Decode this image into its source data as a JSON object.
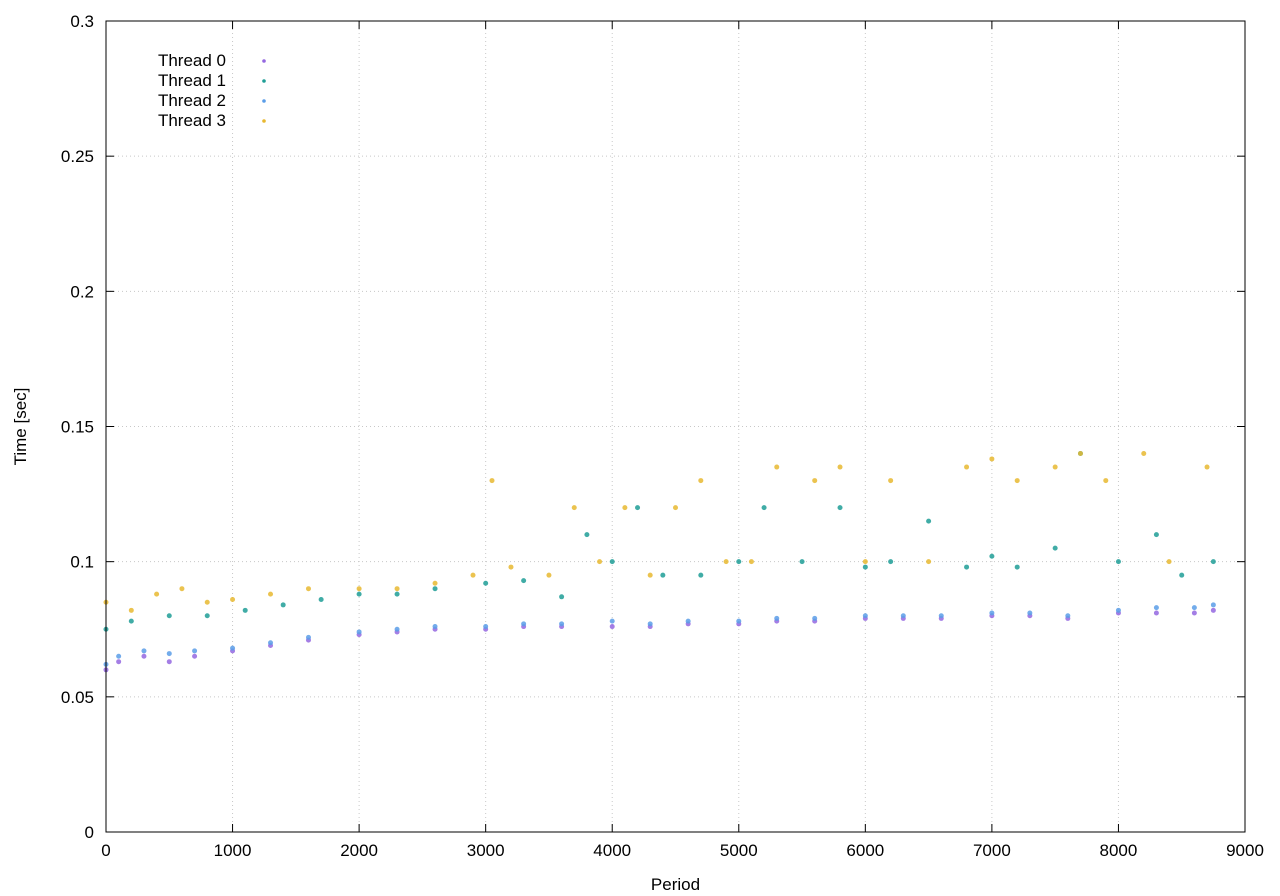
{
  "chart_data": {
    "type": "scatter",
    "title": "",
    "xlabel": "Period",
    "ylabel": "Time [sec]",
    "xlim": [
      0,
      9000
    ],
    "ylim": [
      0,
      0.3
    ],
    "x_ticks": [
      "0",
      "1000",
      "2000",
      "3000",
      "4000",
      "5000",
      "6000",
      "7000",
      "8000",
      "9000"
    ],
    "y_ticks": [
      "0",
      "0.05",
      "0.1",
      "0.15",
      "0.2",
      "0.25",
      "0.3"
    ],
    "grid": true,
    "legend_position": "top-left",
    "series": [
      {
        "name": "Thread 0",
        "color": "#9467e0",
        "x": [
          0,
          100,
          300,
          500,
          700,
          1000,
          1300,
          1600,
          2000,
          2300,
          2600,
          3000,
          3300,
          3600,
          4000,
          4300,
          4600,
          5000,
          5300,
          5600,
          6000,
          6300,
          6600,
          7000,
          7300,
          7600,
          8000,
          8300,
          8600,
          8750
        ],
        "y": [
          0.06,
          0.063,
          0.065,
          0.063,
          0.065,
          0.067,
          0.069,
          0.071,
          0.073,
          0.074,
          0.075,
          0.075,
          0.076,
          0.076,
          0.076,
          0.076,
          0.077,
          0.077,
          0.078,
          0.078,
          0.079,
          0.079,
          0.079,
          0.08,
          0.08,
          0.079,
          0.081,
          0.081,
          0.081,
          0.082
        ]
      },
      {
        "name": "Thread 1",
        "color": "#1f9e96",
        "x": [
          0,
          200,
          500,
          800,
          1100,
          1400,
          1700,
          2000,
          2300,
          2600,
          3000,
          3300,
          3600,
          3800,
          4000,
          4200,
          4400,
          4700,
          5000,
          5200,
          5500,
          5800,
          6000,
          6200,
          6500,
          6800,
          7000,
          7200,
          7500,
          7700,
          8000,
          8300,
          8500,
          8750
        ],
        "y": [
          0.075,
          0.078,
          0.08,
          0.08,
          0.082,
          0.084,
          0.086,
          0.088,
          0.088,
          0.09,
          0.092,
          0.093,
          0.087,
          0.11,
          0.1,
          0.12,
          0.095,
          0.095,
          0.1,
          0.12,
          0.1,
          0.12,
          0.098,
          0.1,
          0.115,
          0.098,
          0.102,
          0.098,
          0.105,
          0.14,
          0.1,
          0.11,
          0.095,
          0.1
        ]
      },
      {
        "name": "Thread 2",
        "color": "#5a9de8",
        "x": [
          0,
          100,
          300,
          500,
          700,
          1000,
          1300,
          1600,
          2000,
          2300,
          2600,
          3000,
          3300,
          3600,
          4000,
          4300,
          4600,
          5000,
          5300,
          5600,
          6000,
          6300,
          6600,
          7000,
          7300,
          7600,
          8000,
          8300,
          8600,
          8750
        ],
        "y": [
          0.062,
          0.065,
          0.067,
          0.066,
          0.067,
          0.068,
          0.07,
          0.072,
          0.074,
          0.075,
          0.076,
          0.076,
          0.077,
          0.077,
          0.078,
          0.077,
          0.078,
          0.078,
          0.079,
          0.079,
          0.08,
          0.08,
          0.08,
          0.081,
          0.081,
          0.08,
          0.082,
          0.083,
          0.083,
          0.084
        ]
      },
      {
        "name": "Thread 3",
        "color": "#e8b830",
        "x": [
          0,
          200,
          400,
          600,
          800,
          1000,
          1300,
          1600,
          2000,
          2300,
          2600,
          2900,
          3050,
          3200,
          3500,
          3700,
          3900,
          4100,
          4300,
          4500,
          4700,
          4900,
          5100,
          5300,
          5600,
          5800,
          6000,
          6200,
          6500,
          6800,
          7000,
          7200,
          7500,
          7700,
          7900,
          8200,
          8400,
          8700
        ],
        "y": [
          0.085,
          0.082,
          0.088,
          0.09,
          0.085,
          0.086,
          0.088,
          0.09,
          0.09,
          0.09,
          0.092,
          0.095,
          0.13,
          0.098,
          0.095,
          0.12,
          0.1,
          0.12,
          0.095,
          0.12,
          0.13,
          0.1,
          0.1,
          0.135,
          0.13,
          0.135,
          0.1,
          0.13,
          0.1,
          0.135,
          0.138,
          0.13,
          0.135,
          0.14,
          0.13,
          0.14,
          0.1,
          0.135
        ]
      }
    ]
  }
}
